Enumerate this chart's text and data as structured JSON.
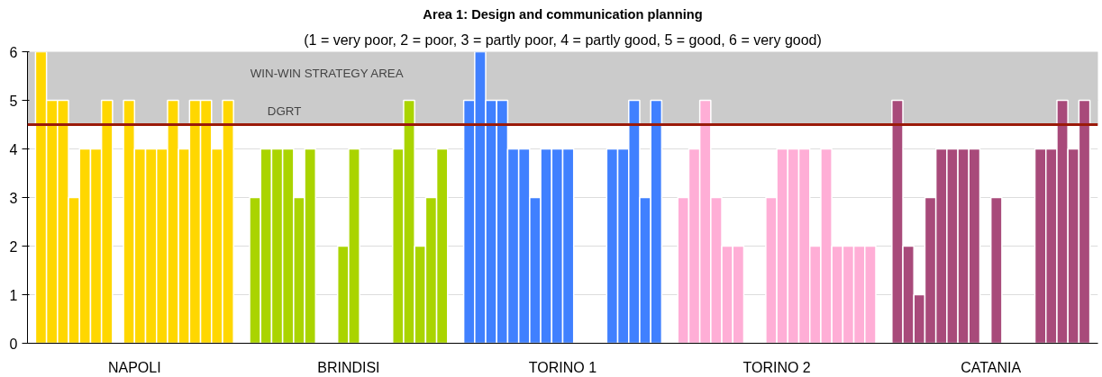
{
  "chart_data": {
    "type": "bar",
    "title": "Area 1: Design and communication planning",
    "subtitle": "(1 = very poor, 2 = poor, 3 = partly poor, 4 = partly good, 5 = good, 6 = very good)",
    "categories": [
      "NAPOLI",
      "BRINDISI",
      "TORINO 1",
      "TORINO 2",
      "CATANIA"
    ],
    "series": [
      {
        "colors": [
          "#ffd700",
          "#aad400",
          "#4080ff",
          "#ffaed6",
          "#a84a7a"
        ],
        "values": [
          6,
          3,
          5,
          3,
          5
        ]
      },
      {
        "colors": [
          "#ffd700",
          "#aad400",
          "#4080ff",
          "#ffaed6",
          "#a84a7a"
        ],
        "values": [
          5,
          4,
          6,
          4,
          2
        ]
      },
      {
        "colors": [
          "#ffd700",
          "#aad400",
          "#4080ff",
          "#ffaed6",
          "#a84a7a"
        ],
        "values": [
          5,
          4,
          5,
          5,
          1
        ]
      },
      {
        "colors": [
          "#ffd700",
          "#aad400",
          "#4080ff",
          "#ffaed6",
          "#a84a7a"
        ],
        "values": [
          3,
          4,
          5,
          3,
          3
        ]
      },
      {
        "colors": [
          "#ffd700",
          "#aad400",
          "#4080ff",
          "#ffaed6",
          "#a84a7a"
        ],
        "values": [
          4,
          3,
          4,
          2,
          4
        ]
      },
      {
        "colors": [
          "#ffd700",
          "#aad400",
          "#4080ff",
          "#ffaed6",
          "#a84a7a"
        ],
        "values": [
          4,
          4,
          4,
          2,
          4
        ]
      },
      {
        "colors": [
          "#ffd700",
          "#aad400",
          "#4080ff",
          "#ffaed6",
          "#a84a7a"
        ],
        "values": [
          5,
          null,
          3,
          null,
          4
        ]
      },
      {
        "colors": [
          "#ffd700",
          "#aad400",
          "#4080ff",
          "#ffaed6",
          "#a84a7a"
        ],
        "values": [
          null,
          null,
          4,
          null,
          4
        ]
      },
      {
        "colors": [
          "#ffd700",
          "#aad400",
          "#4080ff",
          "#ffaed6",
          "#a84a7a"
        ],
        "values": [
          5,
          2,
          4,
          3,
          null
        ]
      },
      {
        "colors": [
          "#ffd700",
          "#aad400",
          "#4080ff",
          "#ffaed6",
          "#a84a7a"
        ],
        "values": [
          4,
          4,
          4,
          4,
          3
        ]
      },
      {
        "colors": [
          "#ffd700",
          "#aad400",
          "#4080ff",
          "#ffaed6",
          "#a84a7a"
        ],
        "values": [
          4,
          null,
          null,
          4,
          null
        ]
      },
      {
        "colors": [
          "#ffd700",
          "#aad400",
          "#4080ff",
          "#ffaed6",
          "#a84a7a"
        ],
        "values": [
          4,
          null,
          null,
          4,
          null
        ]
      },
      {
        "colors": [
          "#ffd700",
          "#aad400",
          "#4080ff",
          "#ffaed6",
          "#a84a7a"
        ],
        "values": [
          5,
          null,
          null,
          2,
          null
        ]
      },
      {
        "colors": [
          "#ffd700",
          "#aad400",
          "#4080ff",
          "#ffaed6",
          "#a84a7a"
        ],
        "values": [
          4,
          4,
          4,
          4,
          4
        ]
      },
      {
        "colors": [
          "#ffd700",
          "#aad400",
          "#4080ff",
          "#ffaed6",
          "#a84a7a"
        ],
        "values": [
          5,
          5,
          4,
          2,
          4
        ]
      },
      {
        "colors": [
          "#ffd700",
          "#aad400",
          "#4080ff",
          "#ffaed6",
          "#a84a7a"
        ],
        "values": [
          5,
          2,
          5,
          2,
          5
        ]
      },
      {
        "colors": [
          "#ffd700",
          "#aad400",
          "#4080ff",
          "#ffaed6",
          "#a84a7a"
        ],
        "values": [
          4,
          3,
          3,
          2,
          4
        ]
      },
      {
        "colors": [
          "#ffd700",
          "#aad400",
          "#4080ff",
          "#ffaed6",
          "#a84a7a"
        ],
        "values": [
          5,
          4,
          5,
          2,
          5
        ]
      }
    ],
    "ylim": [
      0,
      6
    ],
    "yticks": [
      0,
      1,
      2,
      3,
      4,
      5,
      6
    ],
    "grid": "y",
    "bands": [
      {
        "axis": "y",
        "from": 4.5,
        "to": 6,
        "label": "WIN-WIN STRATEGY AREA",
        "color": "#cbcbcb"
      }
    ],
    "ref_lines": [
      {
        "axis": "y",
        "value": 4.5,
        "label": "DGRT",
        "color": "#9b1a0a"
      }
    ]
  }
}
